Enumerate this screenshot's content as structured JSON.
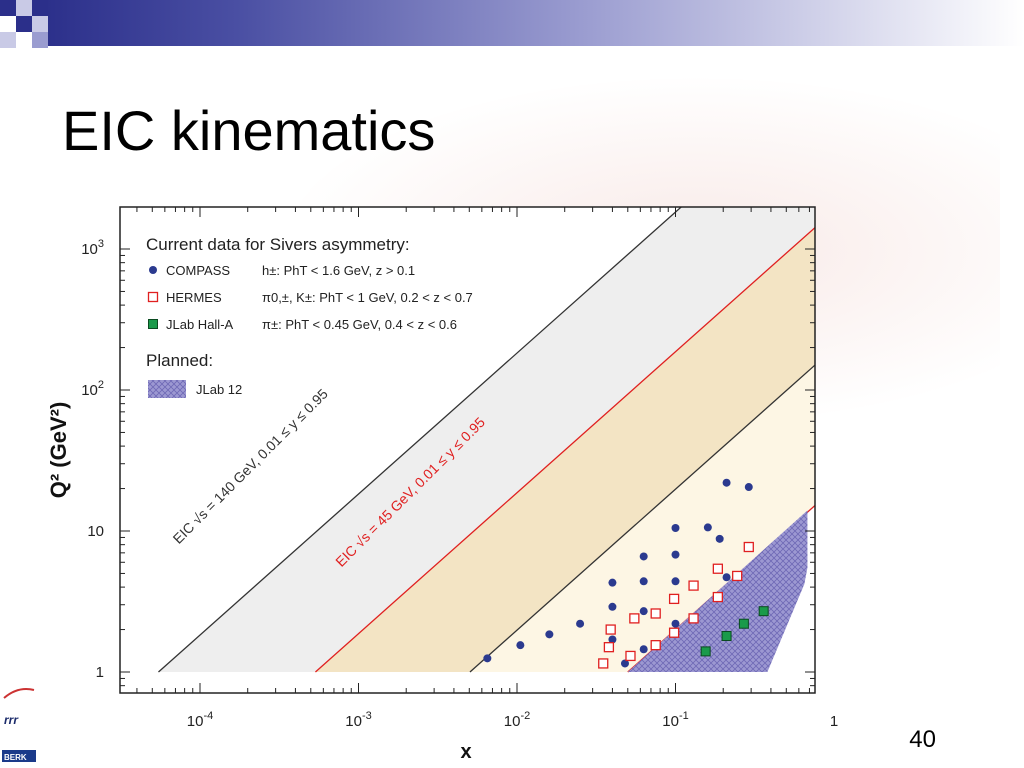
{
  "slide": {
    "title": "EIC kinematics",
    "page_number": "40"
  },
  "chart_data": {
    "type": "scatter",
    "title": "",
    "xlabel": "x",
    "ylabel": "Q² (GeV²)",
    "xscale": "log",
    "yscale": "log",
    "xlim": [
      3e-05,
      1
    ],
    "ylim": [
      0.75,
      1500
    ],
    "x_ticks": [
      "10⁻⁴",
      "10⁻³",
      "10⁻²",
      "10⁻¹",
      "1"
    ],
    "y_ticks": [
      "1",
      "10",
      "10²",
      "10³"
    ],
    "legend": {
      "current_header": "Current data for Sivers asymmetry:",
      "planned_header": "Planned:",
      "entries": [
        {
          "name": "COMPASS",
          "cuts": "h±: PhT < 1.6 GeV,  z > 0.1",
          "color": "#2b3a8f",
          "marker": "circle"
        },
        {
          "name": "HERMES",
          "cuts": "π0,±, K±: PhT < 1 GeV, 0.2 < z < 0.7",
          "color": "#e02020",
          "marker": "open-square"
        },
        {
          "name": "JLab Hall-A",
          "cuts": "π±: PhT < 0.45 GeV,  0.4 < z < 0.6",
          "color": "#1a9a4a",
          "marker": "square"
        },
        {
          "name": "JLab 12",
          "color": "#8a86c8",
          "marker": "hatched-region"
        }
      ]
    },
    "bands": [
      {
        "label": "EIC √s = 140 GeV, 0.01 ≤ y ≤ 0.95",
        "color": "#333333"
      },
      {
        "label": "EIC √s = 45 GeV, 0.01 ≤ y ≤ 0.95",
        "color": "#e02020"
      }
    ],
    "series": [
      {
        "name": "COMPASS",
        "points": [
          [
            0.0065,
            1.25
          ],
          [
            0.0105,
            1.55
          ],
          [
            0.016,
            1.85
          ],
          [
            0.025,
            2.2
          ],
          [
            0.04,
            1.7
          ],
          [
            0.04,
            2.9
          ],
          [
            0.04,
            4.3
          ],
          [
            0.048,
            1.15
          ],
          [
            0.063,
            1.45
          ],
          [
            0.063,
            2.7
          ],
          [
            0.063,
            4.4
          ],
          [
            0.063,
            6.6
          ],
          [
            0.1,
            2.2
          ],
          [
            0.1,
            4.4
          ],
          [
            0.1,
            6.8
          ],
          [
            0.1,
            10.5
          ],
          [
            0.16,
            10.6
          ],
          [
            0.19,
            8.8
          ],
          [
            0.21,
            4.7
          ],
          [
            0.21,
            22
          ],
          [
            0.29,
            20.5
          ]
        ]
      },
      {
        "name": "HERMES",
        "points": [
          [
            0.035,
            1.15
          ],
          [
            0.038,
            1.5
          ],
          [
            0.039,
            2.0
          ],
          [
            0.052,
            1.3
          ],
          [
            0.055,
            2.4
          ],
          [
            0.075,
            1.55
          ],
          [
            0.075,
            2.6
          ],
          [
            0.098,
            1.9
          ],
          [
            0.098,
            3.3
          ],
          [
            0.13,
            2.4
          ],
          [
            0.13,
            4.1
          ],
          [
            0.185,
            3.4
          ],
          [
            0.185,
            5.4
          ],
          [
            0.245,
            4.8
          ],
          [
            0.29,
            7.7
          ]
        ]
      },
      {
        "name": "JLab Hall-A",
        "points": [
          [
            0.155,
            1.4
          ],
          [
            0.21,
            1.8
          ],
          [
            0.27,
            2.2
          ],
          [
            0.36,
            2.7
          ]
        ]
      }
    ]
  }
}
